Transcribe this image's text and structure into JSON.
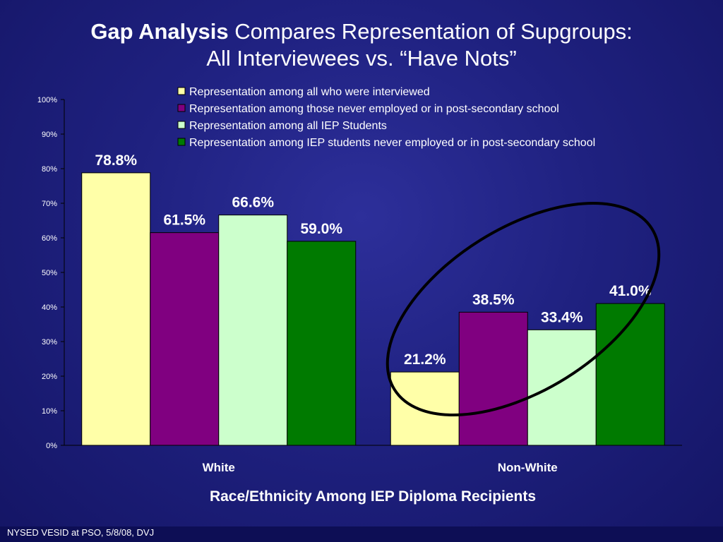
{
  "title": {
    "bold": "Gap Analysis",
    "rest": " Compares Representation of Supgroups:",
    "line2": "All Interviewees  vs.  “Have Nots”"
  },
  "footer": "NYSED VESID at PSO, 5/8/08, DVJ",
  "chart_data": {
    "type": "bar",
    "categories": [
      "White",
      "Non-White"
    ],
    "series": [
      {
        "name": "Representation among all who were interviewed",
        "values": [
          78.8,
          21.2
        ],
        "labels": [
          "78.8%",
          "21.2%"
        ],
        "color": "#ffffa8"
      },
      {
        "name": "Representation among those never employed or in post-secondary school",
        "values": [
          61.5,
          38.5
        ],
        "labels": [
          "61.5%",
          "38.5%"
        ],
        "color": "#800080"
      },
      {
        "name": "Representation among all IEP Students",
        "values": [
          66.6,
          33.4
        ],
        "labels": [
          "66.6%",
          "33.4%"
        ],
        "color": "#ccffcc"
      },
      {
        "name": "Representation among IEP students never employed or in post-secondary school",
        "values": [
          59.0,
          41.0
        ],
        "labels": [
          "59.0%",
          "41.0%"
        ],
        "color": "#007a00"
      }
    ],
    "xlabel": "Race/Ethnicity Among IEP Diploma Recipients",
    "ylabel": "",
    "ylim": [
      0,
      100
    ],
    "yticks": [
      "0%",
      "10%",
      "20%",
      "30%",
      "40%",
      "50%",
      "60%",
      "70%",
      "80%",
      "90%",
      "100%"
    ],
    "legend_position": "top-right",
    "grid": false,
    "annotation": "ellipse around Non-White bars"
  }
}
